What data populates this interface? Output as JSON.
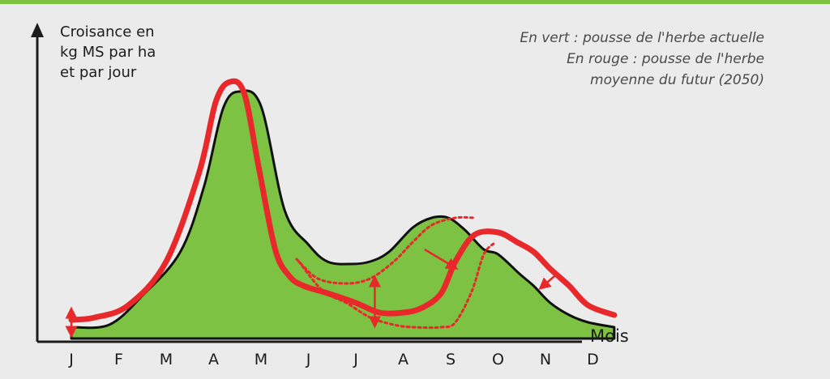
{
  "header_bar_color": "#7dc243",
  "chart_data": {
    "type": "area",
    "title": "",
    "ylabel_lines": [
      "Croisance en",
      "kg MS par ha",
      "et par jour"
    ],
    "xlabel": "Mois",
    "categories": [
      "J",
      "F",
      "M",
      "A",
      "M",
      "J",
      "J",
      "A",
      "S",
      "O",
      "N",
      "D"
    ],
    "ylim": [
      0,
      100
    ],
    "grid": false,
    "legend_placement": "top-right",
    "legend_lines": [
      "En vert : pousse de l'herbe actuelle",
      "En rouge : pousse de l'herbe",
      "moyenne du futur (2050)"
    ],
    "series": [
      {
        "name": "pousse de l'herbe actuelle",
        "style": "green-fill",
        "color": "#7dc243",
        "x": [
          0,
          0.8,
          1.5,
          2.3,
          2.8,
          3.2,
          3.55,
          4.0,
          4.5,
          5.0,
          5.4,
          5.9,
          6.3,
          6.7,
          7.2,
          7.6,
          7.95,
          8.3,
          8.7,
          9.0,
          9.45,
          9.75,
          10.1,
          10.5,
          10.9,
          11.45
        ],
        "y": [
          2,
          3,
          15,
          33,
          60,
          92,
          99,
          93,
          50,
          36,
          29,
          28,
          29,
          33,
          43,
          47,
          47,
          42,
          34,
          32,
          24,
          19,
          12,
          7,
          4,
          2
        ]
      },
      {
        "name": "pousse de l'herbe moyenne du futur (2050)",
        "style": "red-line",
        "color": "#e8282b",
        "x": [
          0,
          0.5,
          1.2,
          2.0,
          2.7,
          3.05,
          3.35,
          3.65,
          3.95,
          4.3,
          4.6,
          4.9,
          5.4,
          6.0,
          6.5,
          7.0,
          7.4,
          7.8,
          8.1,
          8.5,
          9.0,
          9.4,
          9.75,
          10.1,
          10.5,
          10.9,
          11.45
        ],
        "y": [
          5,
          6,
          11,
          29,
          66,
          95,
          103,
          98,
          68,
          34,
          23,
          19,
          16,
          12,
          8,
          8,
          10,
          16,
          29,
          40,
          41,
          37,
          33,
          26,
          19,
          11,
          7
        ]
      },
      {
        "name": "dotted-lower",
        "style": "red-dotted",
        "color": "#e8282b",
        "x": [
          4.8,
          5.3,
          5.8,
          6.3,
          6.8,
          7.2,
          7.8,
          8.1,
          8.45,
          8.7,
          8.95
        ],
        "y": [
          29,
          17,
          12,
          6,
          3,
          2,
          2,
          4,
          17,
          32,
          37
        ]
      },
      {
        "name": "dotted-upper",
        "style": "red-dotted",
        "color": "#e8282b",
        "x": [
          4.75,
          5.2,
          5.8,
          6.3,
          6.8,
          7.2,
          7.6,
          8.1,
          8.5
        ],
        "y": [
          30,
          22,
          20,
          22,
          29,
          37,
          44,
          47,
          47
        ]
      }
    ]
  }
}
